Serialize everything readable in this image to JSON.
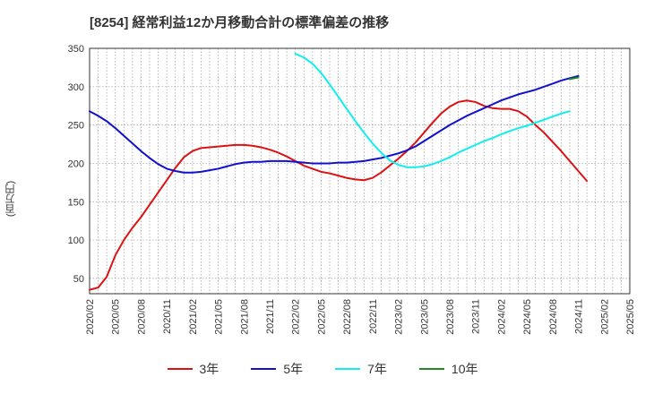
{
  "chart_data": {
    "type": "line",
    "title": "[8254]  経常利益12か月移動合計の標準偏差の推移",
    "ylabel": "(百万円)",
    "xlabel": "",
    "ylim": [
      30,
      350
    ],
    "yticks": [
      50,
      100,
      150,
      200,
      250,
      300,
      350
    ],
    "xlim": [
      "2020-02",
      "2025-05"
    ],
    "xticks": [
      "2020/02",
      "2020/05",
      "2020/08",
      "2020/11",
      "2021/02",
      "2021/05",
      "2021/08",
      "2021/11",
      "2022/02",
      "2022/05",
      "2022/08",
      "2022/11",
      "2023/02",
      "2023/05",
      "2023/08",
      "2023/11",
      "2024/02",
      "2024/05",
      "2024/08",
      "2024/11",
      "2025/02",
      "2025/05"
    ],
    "grid": true,
    "legend_position": "bottom",
    "series": [
      {
        "name": "3年",
        "color": "#dd1111",
        "points": [
          [
            "2020-02",
            35
          ],
          [
            "2020-03",
            38
          ],
          [
            "2020-04",
            52
          ],
          [
            "2020-05",
            80
          ],
          [
            "2020-06",
            100
          ],
          [
            "2020-07",
            116
          ],
          [
            "2020-08",
            130
          ],
          [
            "2020-09",
            146
          ],
          [
            "2020-10",
            162
          ],
          [
            "2020-11",
            178
          ],
          [
            "2020-12",
            194
          ],
          [
            "2021-01",
            208
          ],
          [
            "2021-02",
            216
          ],
          [
            "2021-03",
            220
          ],
          [
            "2021-04",
            221
          ],
          [
            "2021-05",
            222
          ],
          [
            "2021-06",
            223
          ],
          [
            "2021-07",
            224
          ],
          [
            "2021-08",
            224
          ],
          [
            "2021-09",
            223
          ],
          [
            "2021-10",
            221
          ],
          [
            "2021-11",
            218
          ],
          [
            "2021-12",
            214
          ],
          [
            "2022-01",
            209
          ],
          [
            "2022-02",
            203
          ],
          [
            "2022-03",
            197
          ],
          [
            "2022-04",
            193
          ],
          [
            "2022-05",
            189
          ],
          [
            "2022-06",
            187
          ],
          [
            "2022-07",
            184
          ],
          [
            "2022-08",
            181
          ],
          [
            "2022-09",
            179
          ],
          [
            "2022-10",
            178
          ],
          [
            "2022-11",
            181
          ],
          [
            "2022-12",
            188
          ],
          [
            "2023-01",
            197
          ],
          [
            "2023-02",
            206
          ],
          [
            "2023-03",
            216
          ],
          [
            "2023-04",
            227
          ],
          [
            "2023-05",
            240
          ],
          [
            "2023-06",
            253
          ],
          [
            "2023-07",
            265
          ],
          [
            "2023-08",
            274
          ],
          [
            "2023-09",
            280
          ],
          [
            "2023-10",
            282
          ],
          [
            "2023-11",
            280
          ],
          [
            "2023-12",
            275
          ],
          [
            "2024-01",
            272
          ],
          [
            "2024-02",
            271
          ],
          [
            "2024-03",
            271
          ],
          [
            "2024-04",
            268
          ],
          [
            "2024-05",
            261
          ],
          [
            "2024-06",
            250
          ],
          [
            "2024-07",
            240
          ],
          [
            "2024-08",
            228
          ],
          [
            "2024-09",
            216
          ],
          [
            "2024-10",
            203
          ],
          [
            "2024-11",
            190
          ],
          [
            "2024-12",
            177
          ]
        ]
      },
      {
        "name": "5年",
        "color": "#1111cc",
        "points": [
          [
            "2020-02",
            268
          ],
          [
            "2020-03",
            262
          ],
          [
            "2020-04",
            255
          ],
          [
            "2020-05",
            246
          ],
          [
            "2020-06",
            236
          ],
          [
            "2020-07",
            226
          ],
          [
            "2020-08",
            216
          ],
          [
            "2020-09",
            207
          ],
          [
            "2020-10",
            199
          ],
          [
            "2020-11",
            193
          ],
          [
            "2020-12",
            190
          ],
          [
            "2021-01",
            188
          ],
          [
            "2021-02",
            188
          ],
          [
            "2021-03",
            189
          ],
          [
            "2021-04",
            191
          ],
          [
            "2021-05",
            193
          ],
          [
            "2021-06",
            196
          ],
          [
            "2021-07",
            199
          ],
          [
            "2021-08",
            201
          ],
          [
            "2021-09",
            202
          ],
          [
            "2021-10",
            202
          ],
          [
            "2021-11",
            203
          ],
          [
            "2021-12",
            203
          ],
          [
            "2022-01",
            203
          ],
          [
            "2022-02",
            202
          ],
          [
            "2022-03",
            201
          ],
          [
            "2022-04",
            200
          ],
          [
            "2022-05",
            200
          ],
          [
            "2022-06",
            200
          ],
          [
            "2022-07",
            201
          ],
          [
            "2022-08",
            201
          ],
          [
            "2022-09",
            202
          ],
          [
            "2022-10",
            203
          ],
          [
            "2022-11",
            205
          ],
          [
            "2022-12",
            207
          ],
          [
            "2023-01",
            210
          ],
          [
            "2023-02",
            213
          ],
          [
            "2023-03",
            217
          ],
          [
            "2023-04",
            222
          ],
          [
            "2023-05",
            229
          ],
          [
            "2023-06",
            236
          ],
          [
            "2023-07",
            243
          ],
          [
            "2023-08",
            250
          ],
          [
            "2023-09",
            256
          ],
          [
            "2023-10",
            262
          ],
          [
            "2023-11",
            267
          ],
          [
            "2023-12",
            272
          ],
          [
            "2024-01",
            277
          ],
          [
            "2024-02",
            282
          ],
          [
            "2024-03",
            286
          ],
          [
            "2024-04",
            290
          ],
          [
            "2024-05",
            293
          ],
          [
            "2024-06",
            296
          ],
          [
            "2024-07",
            300
          ],
          [
            "2024-08",
            304
          ],
          [
            "2024-09",
            308
          ],
          [
            "2024-10",
            311
          ],
          [
            "2024-11",
            314
          ]
        ]
      },
      {
        "name": "7年",
        "color": "#11eeee",
        "points": [
          [
            "2022-02",
            343
          ],
          [
            "2022-03",
            338
          ],
          [
            "2022-04",
            330
          ],
          [
            "2022-05",
            318
          ],
          [
            "2022-06",
            303
          ],
          [
            "2022-07",
            287
          ],
          [
            "2022-08",
            271
          ],
          [
            "2022-09",
            255
          ],
          [
            "2022-10",
            240
          ],
          [
            "2022-11",
            226
          ],
          [
            "2022-12",
            214
          ],
          [
            "2023-01",
            204
          ],
          [
            "2023-02",
            198
          ],
          [
            "2023-03",
            195
          ],
          [
            "2023-04",
            195
          ],
          [
            "2023-05",
            196
          ],
          [
            "2023-06",
            199
          ],
          [
            "2023-07",
            203
          ],
          [
            "2023-08",
            208
          ],
          [
            "2023-09",
            214
          ],
          [
            "2023-10",
            219
          ],
          [
            "2023-11",
            224
          ],
          [
            "2023-12",
            229
          ],
          [
            "2024-01",
            233
          ],
          [
            "2024-02",
            238
          ],
          [
            "2024-03",
            242
          ],
          [
            "2024-04",
            246
          ],
          [
            "2024-05",
            249
          ],
          [
            "2024-06",
            253
          ],
          [
            "2024-07",
            257
          ],
          [
            "2024-08",
            261
          ],
          [
            "2024-09",
            265
          ],
          [
            "2024-10",
            268
          ]
        ]
      },
      {
        "name": "10年",
        "color": "#228822",
        "points": [
          [
            "2024-10",
            310
          ],
          [
            "2024-11",
            312
          ]
        ]
      }
    ]
  }
}
